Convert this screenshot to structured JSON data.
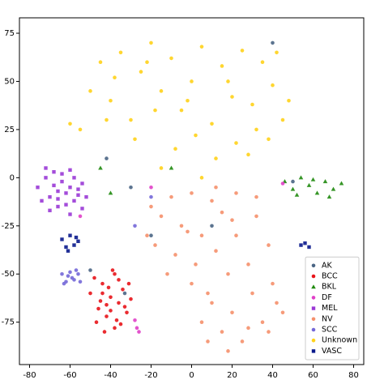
{
  "chart_data": {
    "type": "scatter",
    "xlim": [
      -85,
      85
    ],
    "ylim": [
      -97,
      83
    ],
    "xticks": [
      -80,
      -60,
      -40,
      -20,
      0,
      20,
      40,
      60,
      80
    ],
    "yticks": [
      -75,
      -50,
      -25,
      0,
      25,
      50,
      75
    ],
    "legend": "lower right",
    "series": [
      {
        "name": "AK",
        "color": "#4a6584",
        "marker": "circle",
        "x": [
          -30,
          -42,
          -20,
          10,
          50,
          -50,
          -33,
          40
        ],
        "y": [
          -5,
          10,
          -30,
          -25,
          -2,
          -48,
          -60,
          70
        ]
      },
      {
        "name": "BCC",
        "color": "#e8141a",
        "marker": "circle",
        "x": [
          -50,
          -48,
          -46,
          -44,
          -42,
          -40,
          -38,
          -36,
          -34,
          -32,
          -30,
          -47,
          -43,
          -39,
          -35,
          -31,
          -45,
          -41,
          -37,
          -33,
          -44,
          -40,
          -36,
          -38,
          -42
        ],
        "y": [
          -60,
          -52,
          -68,
          -55,
          -72,
          -62,
          -50,
          -65,
          -58,
          -70,
          -63,
          -75,
          -80,
          -48,
          -76,
          -55,
          -64,
          -57,
          -74,
          -67,
          -60,
          -69,
          -53,
          -78,
          -66
        ]
      },
      {
        "name": "BKL",
        "color": "#1f8a0e",
        "marker": "triangle",
        "x": [
          46,
          50,
          54,
          58,
          62,
          66,
          70,
          74,
          52,
          60,
          68,
          -40,
          -10,
          -45
        ],
        "y": [
          -2,
          -6,
          0,
          -4,
          -8,
          -2,
          -6,
          -3,
          -9,
          -1,
          -10,
          -8,
          5,
          5
        ]
      },
      {
        "name": "DF",
        "color": "#e040c8",
        "marker": "circle",
        "x": [
          -28,
          -27,
          -26,
          -20,
          -55,
          45
        ],
        "y": [
          -74,
          -78,
          -80,
          -5,
          -20,
          -3
        ]
      },
      {
        "name": "MEL",
        "color": "#9a38d6",
        "marker": "square",
        "x": [
          -76,
          -72,
          -70,
          -68,
          -66,
          -64,
          -62,
          -60,
          -58,
          -56,
          -54,
          -52,
          -74,
          -70,
          -66,
          -62,
          -58,
          -54,
          -72,
          -68,
          -64,
          -60,
          -56,
          -66,
          -60
        ],
        "y": [
          -5,
          0,
          -10,
          3,
          -15,
          -2,
          -8,
          4,
          -12,
          -6,
          -3,
          -10,
          -12,
          -17,
          -7,
          -14,
          0,
          -16,
          5,
          -4,
          2,
          -19,
          -9,
          -11,
          -5
        ]
      },
      {
        "name": "NV",
        "color": "#f5906c",
        "marker": "circle",
        "x": [
          -20,
          -15,
          -10,
          -5,
          0,
          5,
          10,
          15,
          20,
          -18,
          -8,
          2,
          12,
          22,
          32,
          -12,
          0,
          8,
          18,
          28,
          38,
          10,
          20,
          30,
          40,
          45,
          15,
          25,
          35,
          5,
          -2,
          12,
          22,
          32,
          42,
          18,
          28,
          8,
          -22,
          38
        ],
        "y": [
          -15,
          -20,
          -10,
          -25,
          -8,
          -30,
          -12,
          -18,
          -22,
          -35,
          -40,
          -45,
          -38,
          -30,
          -20,
          -50,
          -55,
          -60,
          -50,
          -45,
          -35,
          -65,
          -70,
          -60,
          -55,
          -70,
          -80,
          -85,
          -75,
          -75,
          -28,
          -5,
          -8,
          -10,
          -65,
          -90,
          -78,
          -85,
          -30,
          -80
        ]
      },
      {
        "name": "SCC",
        "color": "#7468d8",
        "marker": "circle",
        "x": [
          -64,
          -62,
          -60,
          -58,
          -56,
          -63,
          -59,
          -57,
          -61,
          -55,
          -28,
          -20
        ],
        "y": [
          -50,
          -54,
          -49,
          -53,
          -50,
          -55,
          -52,
          -48,
          -51,
          -54,
          -25,
          -10
        ]
      },
      {
        "name": "Unknown",
        "color": "#ffd21a",
        "marker": "circle",
        "x": [
          -55,
          -45,
          -40,
          -35,
          -30,
          -25,
          -20,
          -15,
          -10,
          -5,
          0,
          5,
          10,
          15,
          20,
          25,
          30,
          35,
          40,
          45,
          -50,
          -38,
          -28,
          -18,
          -8,
          2,
          12,
          22,
          32,
          42,
          -42,
          -22,
          -2,
          18,
          38,
          -15,
          5,
          28,
          -60,
          48
        ],
        "y": [
          25,
          60,
          40,
          65,
          30,
          55,
          70,
          45,
          62,
          35,
          50,
          68,
          28,
          58,
          42,
          66,
          38,
          60,
          48,
          30,
          45,
          52,
          20,
          35,
          15,
          22,
          10,
          18,
          25,
          65,
          30,
          60,
          40,
          50,
          20,
          5,
          0,
          12,
          28,
          40
        ]
      },
      {
        "name": "VASC",
        "color": "#0a1a8c",
        "marker": "square",
        "x": [
          -64,
          -62,
          -60,
          -58,
          -56,
          -61,
          -57,
          54,
          56,
          58
        ],
        "y": [
          -32,
          -36,
          -30,
          -35,
          -33,
          -38,
          -31,
          -35,
          -34,
          -36
        ]
      }
    ]
  }
}
